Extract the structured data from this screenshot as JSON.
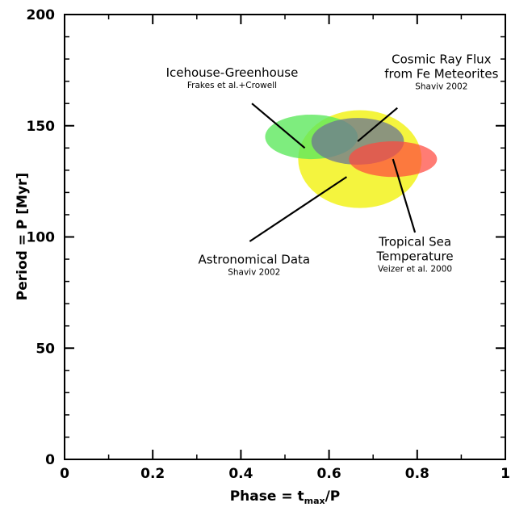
{
  "chart_data": {
    "type": "scatter",
    "title": "",
    "xlabel": "Phase = t_max/P",
    "xlabel_main": "Phase = t",
    "xlabel_sub": "max",
    "xlabel_end": "/P",
    "ylabel": "Period = P [Myr]",
    "xlim": [
      0,
      1
    ],
    "ylim": [
      0,
      200
    ],
    "x_ticks": [
      "0",
      "0.2",
      "0.4",
      "0.6",
      "0.8",
      "1"
    ],
    "x_tick_values": [
      0,
      0.2,
      0.4,
      0.6,
      0.8,
      1
    ],
    "y_ticks": [
      "0",
      "50",
      "100",
      "150",
      "200"
    ],
    "y_tick_values": [
      0,
      50,
      100,
      150,
      200
    ],
    "grid": false,
    "regions": [
      {
        "label": "Astronomical Data",
        "source": "Shaviv 2002",
        "cx": 0.67,
        "cy": 135,
        "rx": 0.14,
        "ry": 22,
        "color": "#f2f21c",
        "opacity": 0.85
      },
      {
        "label": "Icehouse-Greenhouse",
        "source": "Frakes et al.+Crowell",
        "cx": 0.56,
        "cy": 145,
        "rx": 0.105,
        "ry": 10,
        "color": "#5ee85e",
        "opacity": 0.8
      },
      {
        "label": "Cosmic Ray Flux from Fe Meteorites",
        "source": "Shaviv 2002",
        "cx": 0.665,
        "cy": 143,
        "rx": 0.105,
        "ry": 10.5,
        "color": "#6e7a90",
        "opacity": 0.78
      },
      {
        "label": "Tropical Sea Temperature",
        "source": "Veizer et al. 2000",
        "cx": 0.745,
        "cy": 135,
        "rx": 0.1,
        "ry": 8,
        "color": "#ff4a3e",
        "opacity": 0.72
      }
    ],
    "annotations": [
      {
        "name": "icehouse",
        "lines": [
          "Icehouse-Greenhouse"
        ],
        "sub": "Frakes et al.+Crowell",
        "anchor": [
          0.38,
          172
        ],
        "pointer": [
          [
            0.425,
            160
          ],
          [
            0.545,
            140
          ]
        ]
      },
      {
        "name": "cosmic",
        "lines": [
          "Cosmic Ray Flux",
          "from Fe Meteorites"
        ],
        "sub": "Shaviv 2002",
        "anchor": [
          0.855,
          178
        ],
        "pointer": [
          [
            0.755,
            158
          ],
          [
            0.665,
            143
          ]
        ]
      },
      {
        "name": "astronomical",
        "lines": [
          "Astronomical Data"
        ],
        "sub": "Shaviv 2002",
        "anchor": [
          0.43,
          88
        ],
        "pointer": [
          [
            0.42,
            98
          ],
          [
            0.64,
            127
          ]
        ]
      },
      {
        "name": "tropical",
        "lines": [
          "Tropical Sea",
          "Temperature"
        ],
        "sub": "Veizer et al. 2000",
        "anchor": [
          0.795,
          96
        ],
        "pointer": [
          [
            0.795,
            102
          ],
          [
            0.745,
            135
          ]
        ]
      }
    ]
  }
}
